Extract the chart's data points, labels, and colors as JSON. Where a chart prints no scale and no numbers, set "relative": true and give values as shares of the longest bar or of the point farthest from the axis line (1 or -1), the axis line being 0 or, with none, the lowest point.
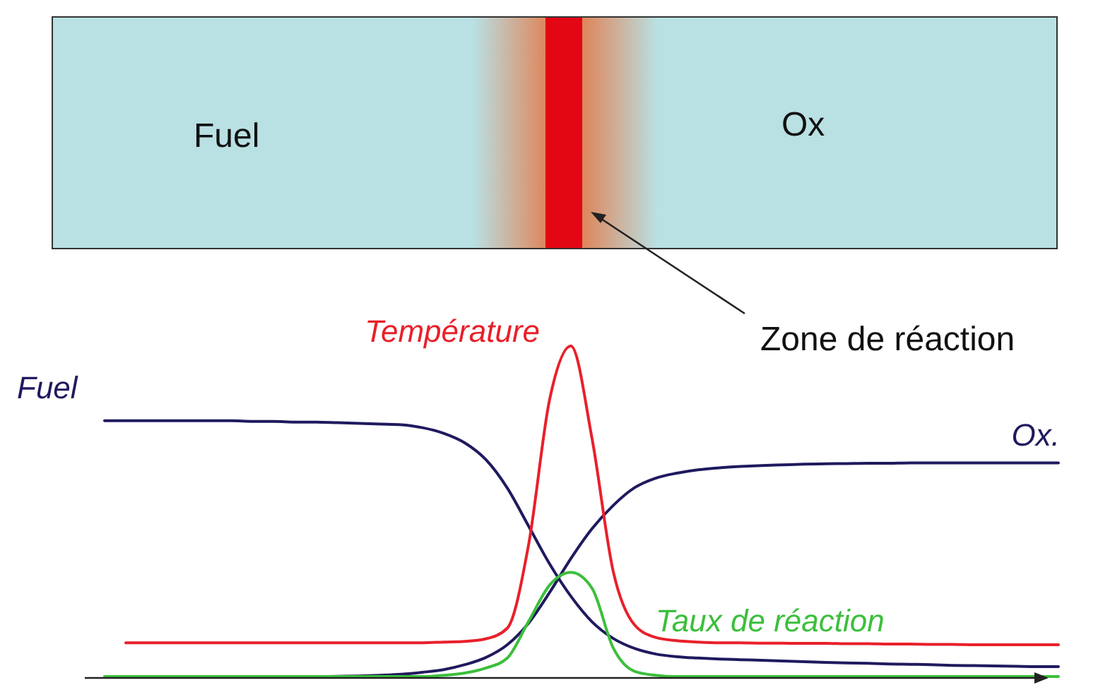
{
  "chart_data": {
    "type": "line",
    "relative": true,
    "categories": [
      null,
      null,
      null,
      null,
      null,
      null,
      null,
      null,
      null,
      null,
      null,
      null,
      null,
      null,
      null,
      null,
      null,
      null,
      null,
      null,
      null,
      null,
      null,
      null,
      null,
      null,
      null,
      null,
      null,
      null,
      null,
      null,
      null,
      null,
      null,
      null,
      null,
      null,
      null,
      null,
      null,
      null,
      null,
      null,
      null,
      null
    ],
    "series": [
      {
        "name": "Fuel",
        "color": "#1f1a5e",
        "values": [
          0.775,
          0.775,
          0.775,
          0.775,
          0.775,
          0.775,
          0.775,
          0.773,
          0.773,
          0.771,
          0.771,
          0.769,
          0.767,
          0.765,
          0.763,
          0.754,
          0.737,
          0.708,
          0.657,
          0.572,
          0.458,
          0.343,
          0.246,
          0.169,
          0.119,
          0.089,
          0.072,
          0.064,
          0.06,
          0.057,
          0.055,
          0.053,
          0.051,
          0.049,
          0.047,
          0.045,
          0.044,
          0.042,
          0.041,
          0.04,
          0.038,
          0.037,
          0.036,
          0.035,
          0.034,
          0.034
        ]
      },
      {
        "name": "Ox.",
        "color": "#1f1a5e",
        "values": [
          null,
          null,
          null,
          null,
          null,
          null,
          null,
          null,
          null,
          null,
          0.004,
          0.005,
          0.006,
          0.008,
          0.011,
          0.017,
          0.025,
          0.04,
          0.062,
          0.1,
          0.165,
          0.258,
          0.36,
          0.45,
          0.52,
          0.573,
          0.602,
          0.617,
          0.627,
          0.633,
          0.637,
          0.64,
          0.642,
          0.644,
          0.645,
          0.646,
          0.647,
          0.647,
          0.648,
          0.648,
          0.648,
          0.648,
          0.648,
          0.648,
          0.648,
          0.648
        ]
      },
      {
        "name": "Température",
        "color": "#e8202a",
        "values": [
          null,
          0.106,
          0.106,
          0.106,
          0.106,
          0.106,
          0.106,
          0.106,
          0.106,
          0.106,
          0.106,
          0.106,
          0.106,
          0.106,
          0.106,
          0.106,
          0.108,
          0.11,
          0.118,
          0.15,
          0.4,
          0.84,
          1,
          0.72,
          0.32,
          0.16,
          0.122,
          0.112,
          0.108,
          0.106,
          0.106,
          0.105,
          0.105,
          0.104,
          0.104,
          0.103,
          0.103,
          0.102,
          0.102,
          0.101,
          0.101,
          0.1,
          0.1,
          0.1,
          0.1,
          0.1
        ]
      },
      {
        "name": "Taux de réaction",
        "color": "#3cbf3c",
        "values": [
          0.004,
          0.004,
          0.004,
          0.004,
          0.004,
          0.004,
          0.004,
          0.004,
          0.004,
          0.004,
          0.004,
          0.004,
          0.004,
          0.004,
          0.004,
          0.004,
          0.008,
          0.015,
          0.03,
          0.06,
          0.17,
          0.28,
          0.318,
          0.27,
          0.09,
          0.02,
          0.008,
          0.004,
          0.004,
          0.004,
          0.004,
          0.004,
          0.004,
          0.004,
          0.004,
          0.004,
          0.004,
          0.004,
          0.004,
          0.004,
          0.004,
          0.004,
          0.004,
          0.004,
          0.004,
          0.004
        ]
      }
    ],
    "annotations": [
      "Fuel",
      "Ox",
      "Zone de réaction"
    ]
  }
}
